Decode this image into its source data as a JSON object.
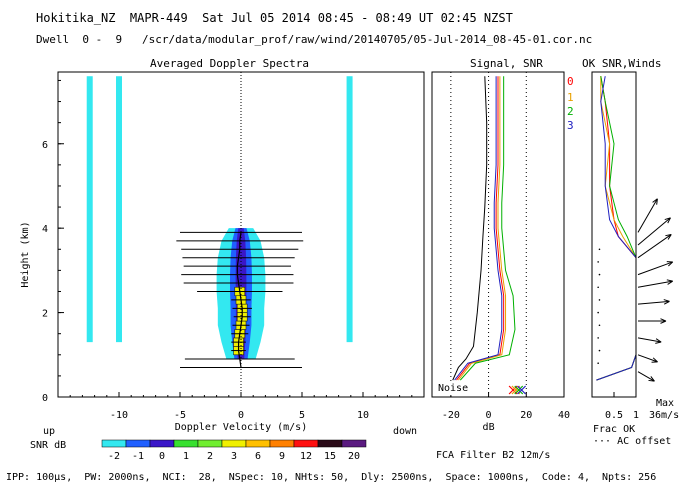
{
  "header": {
    "line1": "Hokitika_NZ  MAPR-449  Sat Jul 05 2014 08:45 - 08:49 UT 02:45 NZST",
    "line2": "Dwell  0 -  9   /scr/data/modular_prof/raw/wind/20140705/05-Jul-2014_08-45-01.cor.nc"
  },
  "footer": {
    "params": "IPP: 100µs,  PW: 2000ns,  NCI:  28,  NSpec: 10, NHts: 50,  Dly: 2500ns,  Space: 1000ns,  Code: 4,  Npts: 256",
    "filter": "FCA Filter B2 12m/s"
  },
  "colors": {
    "background": "#ffffff",
    "snr_scale": [
      "#33e8f0",
      "#2060ff",
      "#3a16c8",
      "#38e030",
      "#70ee30",
      "#f0f000",
      "#ffc000",
      "#ff8000",
      "#ff1010",
      "#2a0a18",
      "#5a1a80"
    ],
    "beam0": "#ff0000",
    "beam1": "#e8a000",
    "beam2": "#00b000",
    "beam3": "#2020c0"
  },
  "chart_data": [
    {
      "type": "heatmap",
      "title": "Averaged Doppler Spectra",
      "xlabel": "Doppler Velocity (m/s)",
      "ylabel": "Height (km)",
      "xlim": [
        -15,
        15
      ],
      "ylim": [
        0,
        7.7
      ],
      "xticks": [
        -10,
        -5,
        0,
        5,
        10
      ],
      "yticks": [
        0,
        2,
        4,
        6
      ],
      "direction_left": "up",
      "direction_right": "down",
      "colorbar": {
        "label": "SNR dB",
        "ticks": [
          "-2",
          "-1",
          "0",
          "1",
          "2",
          "3",
          "6",
          "9",
          "12",
          "15",
          "20"
        ]
      },
      "peak_profile": {
        "height_km": [
          0.7,
          0.9,
          1.1,
          1.3,
          1.5,
          1.7,
          1.9,
          2.1,
          2.3,
          2.5,
          2.7,
          2.9,
          3.1,
          3.3,
          3.5,
          3.7,
          3.9
        ],
        "velocity_ms": [
          0.0,
          -0.1,
          -0.2,
          -0.2,
          -0.1,
          0.0,
          0.1,
          0.1,
          0.0,
          -0.1,
          -0.2,
          -0.3,
          -0.3,
          -0.2,
          -0.1,
          -0.1,
          0.0
        ],
        "spectral_width_ms": [
          5.0,
          4.5,
          0.6,
          0.6,
          0.7,
          0.7,
          0.7,
          0.8,
          0.8,
          3.5,
          4.5,
          4.6,
          4.4,
          4.6,
          4.8,
          5.2,
          5.0
        ]
      },
      "echo_core": {
        "height_km": [
          0.9,
          1.3,
          1.7,
          2.1,
          2.5,
          2.9,
          3.3,
          3.7,
          4.0
        ],
        "half_width_ms": [
          1.2,
          1.6,
          1.9,
          1.9,
          2.0,
          2.0,
          1.9,
          1.6,
          1.0
        ]
      },
      "interference_bands_ms": [
        -12.4,
        -10.0,
        8.9
      ]
    },
    {
      "type": "line",
      "title": "Signal, SNR",
      "xlabel": "dB",
      "xlim": [
        -30,
        40
      ],
      "xticks": [
        -20,
        0,
        20,
        40
      ],
      "ylim": [
        0,
        7.7
      ],
      "annotation": "Noise",
      "series": [
        {
          "name": "noise",
          "x": [
            -19,
            -16,
            -12,
            -8,
            -6,
            -4,
            -3,
            -2,
            -1,
            -1,
            -2
          ],
          "y": [
            0.4,
            0.7,
            0.9,
            1.2,
            2.0,
            3.0,
            3.8,
            4.5,
            5.5,
            6.5,
            7.6
          ]
        },
        {
          "name": "beam0",
          "x": [
            -17,
            -10,
            6,
            8,
            8,
            6,
            4,
            4,
            5,
            5,
            5
          ],
          "y": [
            0.4,
            0.8,
            1.0,
            1.6,
            2.4,
            3.0,
            4.0,
            4.6,
            5.5,
            6.5,
            7.6
          ]
        },
        {
          "name": "beam1",
          "x": [
            -16,
            -9,
            7,
            9,
            9,
            7,
            5,
            5,
            6,
            6,
            6
          ],
          "y": [
            0.4,
            0.8,
            1.0,
            1.6,
            2.4,
            3.0,
            4.0,
            4.6,
            5.5,
            6.5,
            7.6
          ]
        },
        {
          "name": "beam2",
          "x": [
            -15,
            -7,
            11,
            14,
            13,
            9,
            7,
            7,
            8,
            8,
            8
          ],
          "y": [
            0.4,
            0.8,
            1.0,
            1.6,
            2.4,
            3.0,
            4.0,
            4.6,
            5.5,
            6.5,
            7.6
          ]
        },
        {
          "name": "beam3",
          "x": [
            -18,
            -11,
            5,
            7,
            7,
            5,
            3,
            3,
            4,
            4,
            4
          ],
          "y": [
            0.4,
            0.8,
            1.0,
            1.6,
            2.4,
            3.0,
            4.0,
            4.6,
            5.5,
            6.5,
            7.6
          ]
        }
      ],
      "guide_lines_x": [
        -20,
        0,
        20
      ]
    },
    {
      "type": "line",
      "title": "OK SNR,Winds",
      "xlabel": "Frac OK",
      "xlim": [
        0,
        1
      ],
      "xticks": [
        0.5,
        1
      ],
      "ylim": [
        0,
        7.7
      ],
      "legend": [
        "0",
        "1",
        "2",
        "3"
      ],
      "max_label": "Max",
      "max_value": "36m/s",
      "offset_label": "AC offset",
      "series": [
        {
          "name": "beam0",
          "x": [
            0.1,
            0.9,
            1.0,
            1.0,
            1.0,
            0.6,
            0.5,
            0.4,
            0.4,
            0.3,
            0.2
          ],
          "y": [
            0.4,
            0.7,
            1.0,
            2.0,
            3.3,
            3.8,
            4.2,
            5.0,
            6.0,
            7.0,
            7.6
          ]
        },
        {
          "name": "beam1",
          "x": [
            0.1,
            0.9,
            1.0,
            1.0,
            1.0,
            0.7,
            0.5,
            0.3,
            0.4,
            0.2,
            0.2
          ],
          "y": [
            0.4,
            0.7,
            1.0,
            2.0,
            3.3,
            3.8,
            4.2,
            5.0,
            6.0,
            7.0,
            7.6
          ]
        },
        {
          "name": "beam2",
          "x": [
            0.1,
            0.9,
            1.0,
            1.0,
            1.0,
            0.8,
            0.6,
            0.4,
            0.5,
            0.3,
            0.2
          ],
          "y": [
            0.4,
            0.7,
            1.0,
            2.0,
            3.3,
            3.8,
            4.2,
            5.0,
            6.0,
            7.0,
            7.6
          ]
        },
        {
          "name": "beam3",
          "x": [
            0.1,
            0.9,
            1.0,
            1.0,
            1.0,
            0.6,
            0.4,
            0.3,
            0.3,
            0.2,
            0.3
          ],
          "y": [
            0.4,
            0.7,
            1.0,
            2.0,
            3.3,
            3.8,
            4.2,
            5.0,
            6.0,
            7.0,
            7.6
          ]
        }
      ],
      "wind_barbs": {
        "height_km": [
          0.6,
          1.0,
          1.4,
          1.8,
          2.2,
          2.6,
          2.9,
          3.3,
          3.6,
          3.9
        ],
        "direction_deg": [
          300,
          290,
          280,
          270,
          265,
          260,
          250,
          235,
          230,
          210
        ],
        "speed_ms": [
          10,
          12,
          15,
          20,
          24,
          28,
          30,
          34,
          36,
          32
        ]
      }
    }
  ]
}
